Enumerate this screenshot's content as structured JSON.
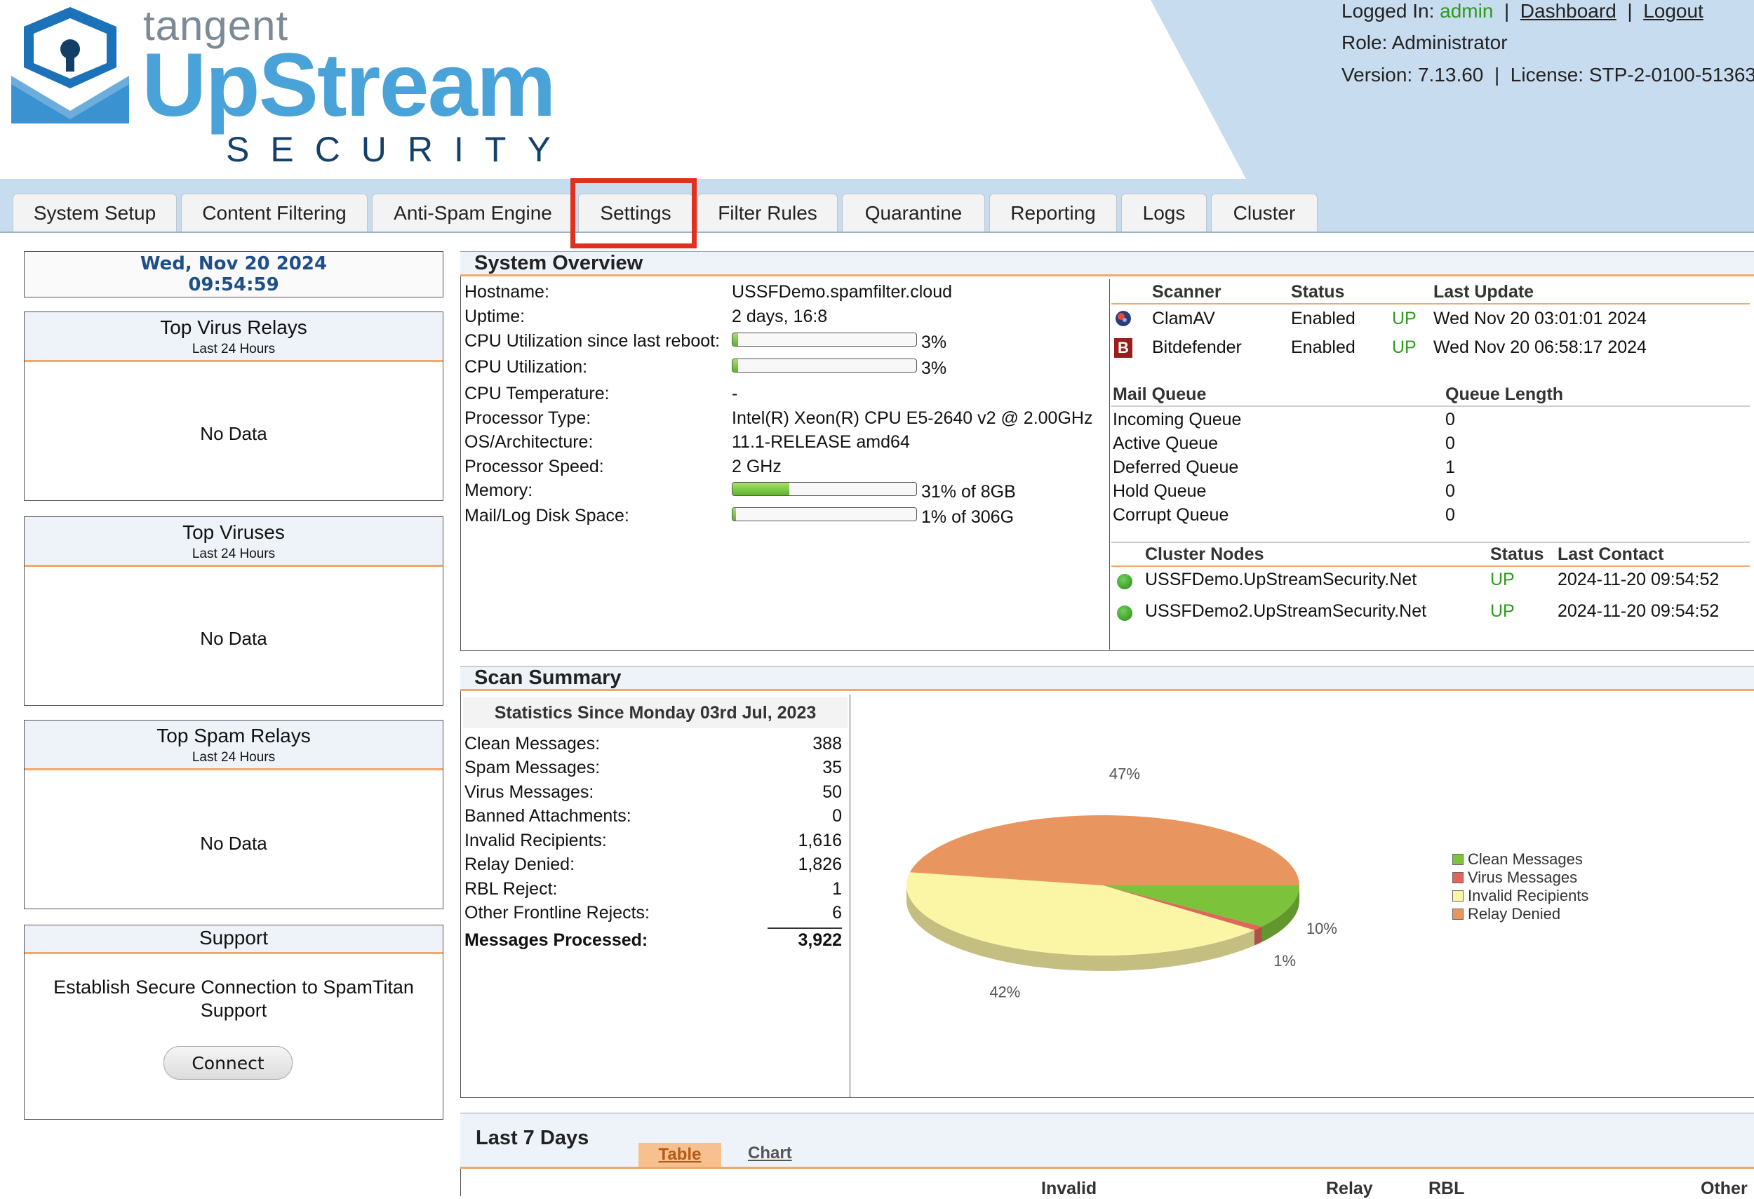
{
  "header": {
    "brand_top": "tangent",
    "brand_main": "UpStream",
    "brand_sub": "SECURITY",
    "logged_in_label": "Logged In:",
    "user": "admin",
    "sep": "|",
    "dashboard_link": "Dashboard",
    "logout_link": "Logout",
    "role": "Role: Administrator",
    "version": "Version: 7.13.60",
    "license": "License: STP-2-0100-51363"
  },
  "tabs": [
    {
      "label": "System Setup"
    },
    {
      "label": "Content Filtering"
    },
    {
      "label": "Anti-Spam Engine"
    },
    {
      "label": "Settings"
    },
    {
      "label": "Filter Rules"
    },
    {
      "label": "Quarantine"
    },
    {
      "label": "Reporting"
    },
    {
      "label": "Logs"
    },
    {
      "label": "Cluster"
    }
  ],
  "sidebar": {
    "date": "Wed, Nov 20 2024",
    "time": "09:54:59",
    "virus_relays": {
      "title": "Top Virus Relays",
      "sub": "Last 24 Hours",
      "empty": "No Data"
    },
    "viruses": {
      "title": "Top Viruses",
      "sub": "Last 24 Hours",
      "empty": "No Data"
    },
    "spam_relays": {
      "title": "Top Spam Relays",
      "sub": "Last 24 Hours",
      "empty": "No Data"
    },
    "support": {
      "title": "Support",
      "text": "Establish Secure Connection to SpamTitan Support",
      "button": "Connect"
    }
  },
  "system_overview": {
    "title": "System Overview",
    "rows": [
      {
        "label": "Hostname:",
        "value": "USSFDemo.spamfilter.cloud"
      },
      {
        "label": "Uptime:",
        "value": "2 days, 16:8"
      },
      {
        "label": "CPU Utilization since last reboot:",
        "value": "3%"
      },
      {
        "label": "CPU Utilization:",
        "value": "3%"
      },
      {
        "label": "CPU Temperature:",
        "value": "-"
      },
      {
        "label": "Processor Type:",
        "value": "Intel(R) Xeon(R) CPU E5-2640 v2 @ 2.00GHz"
      },
      {
        "label": "OS/Architecture:",
        "value": "11.1-RELEASE amd64"
      },
      {
        "label": "Processor Speed:",
        "value": "2 GHz"
      },
      {
        "label": "Memory:",
        "value": "31% of 8GB"
      },
      {
        "label": "Mail/Log Disk Space:",
        "value": "1% of 306G"
      }
    ],
    "bars": {
      "cpu_since_reboot": 0.03,
      "cpu": 0.03,
      "memory": 0.31,
      "disk": 0.01
    },
    "scanner_headers": {
      "scanner": "Scanner",
      "status": "Status",
      "last_update": "Last Update"
    },
    "scanners": [
      {
        "name": "ClamAV",
        "status": "Enabled",
        "state": "UP",
        "last_update": "Wed Nov 20 03:01:01 2024",
        "icon": "clamav-icon"
      },
      {
        "name": "Bitdefender",
        "status": "Enabled",
        "state": "UP",
        "last_update": "Wed Nov 20 06:58:17 2024",
        "icon": "bitdefender-icon",
        "icon_letter": "B"
      }
    ],
    "queue_headers": {
      "name": "Mail Queue",
      "length": "Queue Length"
    },
    "queues": [
      {
        "name": "Incoming Queue",
        "length": "0"
      },
      {
        "name": "Active Queue",
        "length": "0"
      },
      {
        "name": "Deferred Queue",
        "length": "1"
      },
      {
        "name": "Hold Queue",
        "length": "0"
      },
      {
        "name": "Corrupt Queue",
        "length": "0"
      }
    ],
    "cluster_headers": {
      "node": "Cluster Nodes",
      "status": "Status",
      "contact": "Last Contact"
    },
    "cluster_nodes": [
      {
        "name": "USSFDemo.UpStreamSecurity.Net",
        "status": "UP",
        "contact": "2024-11-20 09:54:52"
      },
      {
        "name": "USSFDemo2.UpStreamSecurity.Net",
        "status": "UP",
        "contact": "2024-11-20 09:54:52"
      }
    ]
  },
  "scan_summary": {
    "title": "Scan Summary",
    "stats_title": "Statistics Since Monday 03rd Jul, 2023",
    "stats": [
      {
        "label": "Clean Messages:",
        "value": "388"
      },
      {
        "label": "Spam Messages:",
        "value": "35"
      },
      {
        "label": "Virus Messages:",
        "value": "50"
      },
      {
        "label": "Banned Attachments:",
        "value": "0"
      },
      {
        "label": "Invalid Recipients:",
        "value": "1,616"
      },
      {
        "label": "Relay Denied:",
        "value": "1,826"
      },
      {
        "label": "RBL Reject:",
        "value": "1"
      },
      {
        "label": "Other Frontline Rejects:",
        "value": "6"
      }
    ],
    "total_label": "Messages Processed:",
    "total_value": "3,922"
  },
  "chart_data": {
    "type": "pie",
    "slices": [
      {
        "name": "Clean Messages",
        "value": 10,
        "label": "10%",
        "color": "#7cc23a"
      },
      {
        "name": "Virus Messages",
        "value": 1,
        "label": "1%",
        "color": "#e0665a"
      },
      {
        "name": "Invalid Recipients",
        "value": 42,
        "label": "42%",
        "color": "#fbf5a6"
      },
      {
        "name": "Relay Denied",
        "value": 47,
        "label": "47%",
        "color": "#e9955f"
      }
    ],
    "legend_position": "right"
  },
  "last7": {
    "title": "Last 7 Days",
    "tab_table": "Table",
    "tab_chart": "Chart",
    "columns_visible": [
      "Invalid",
      "Relay",
      "RBL",
      "Other"
    ]
  }
}
